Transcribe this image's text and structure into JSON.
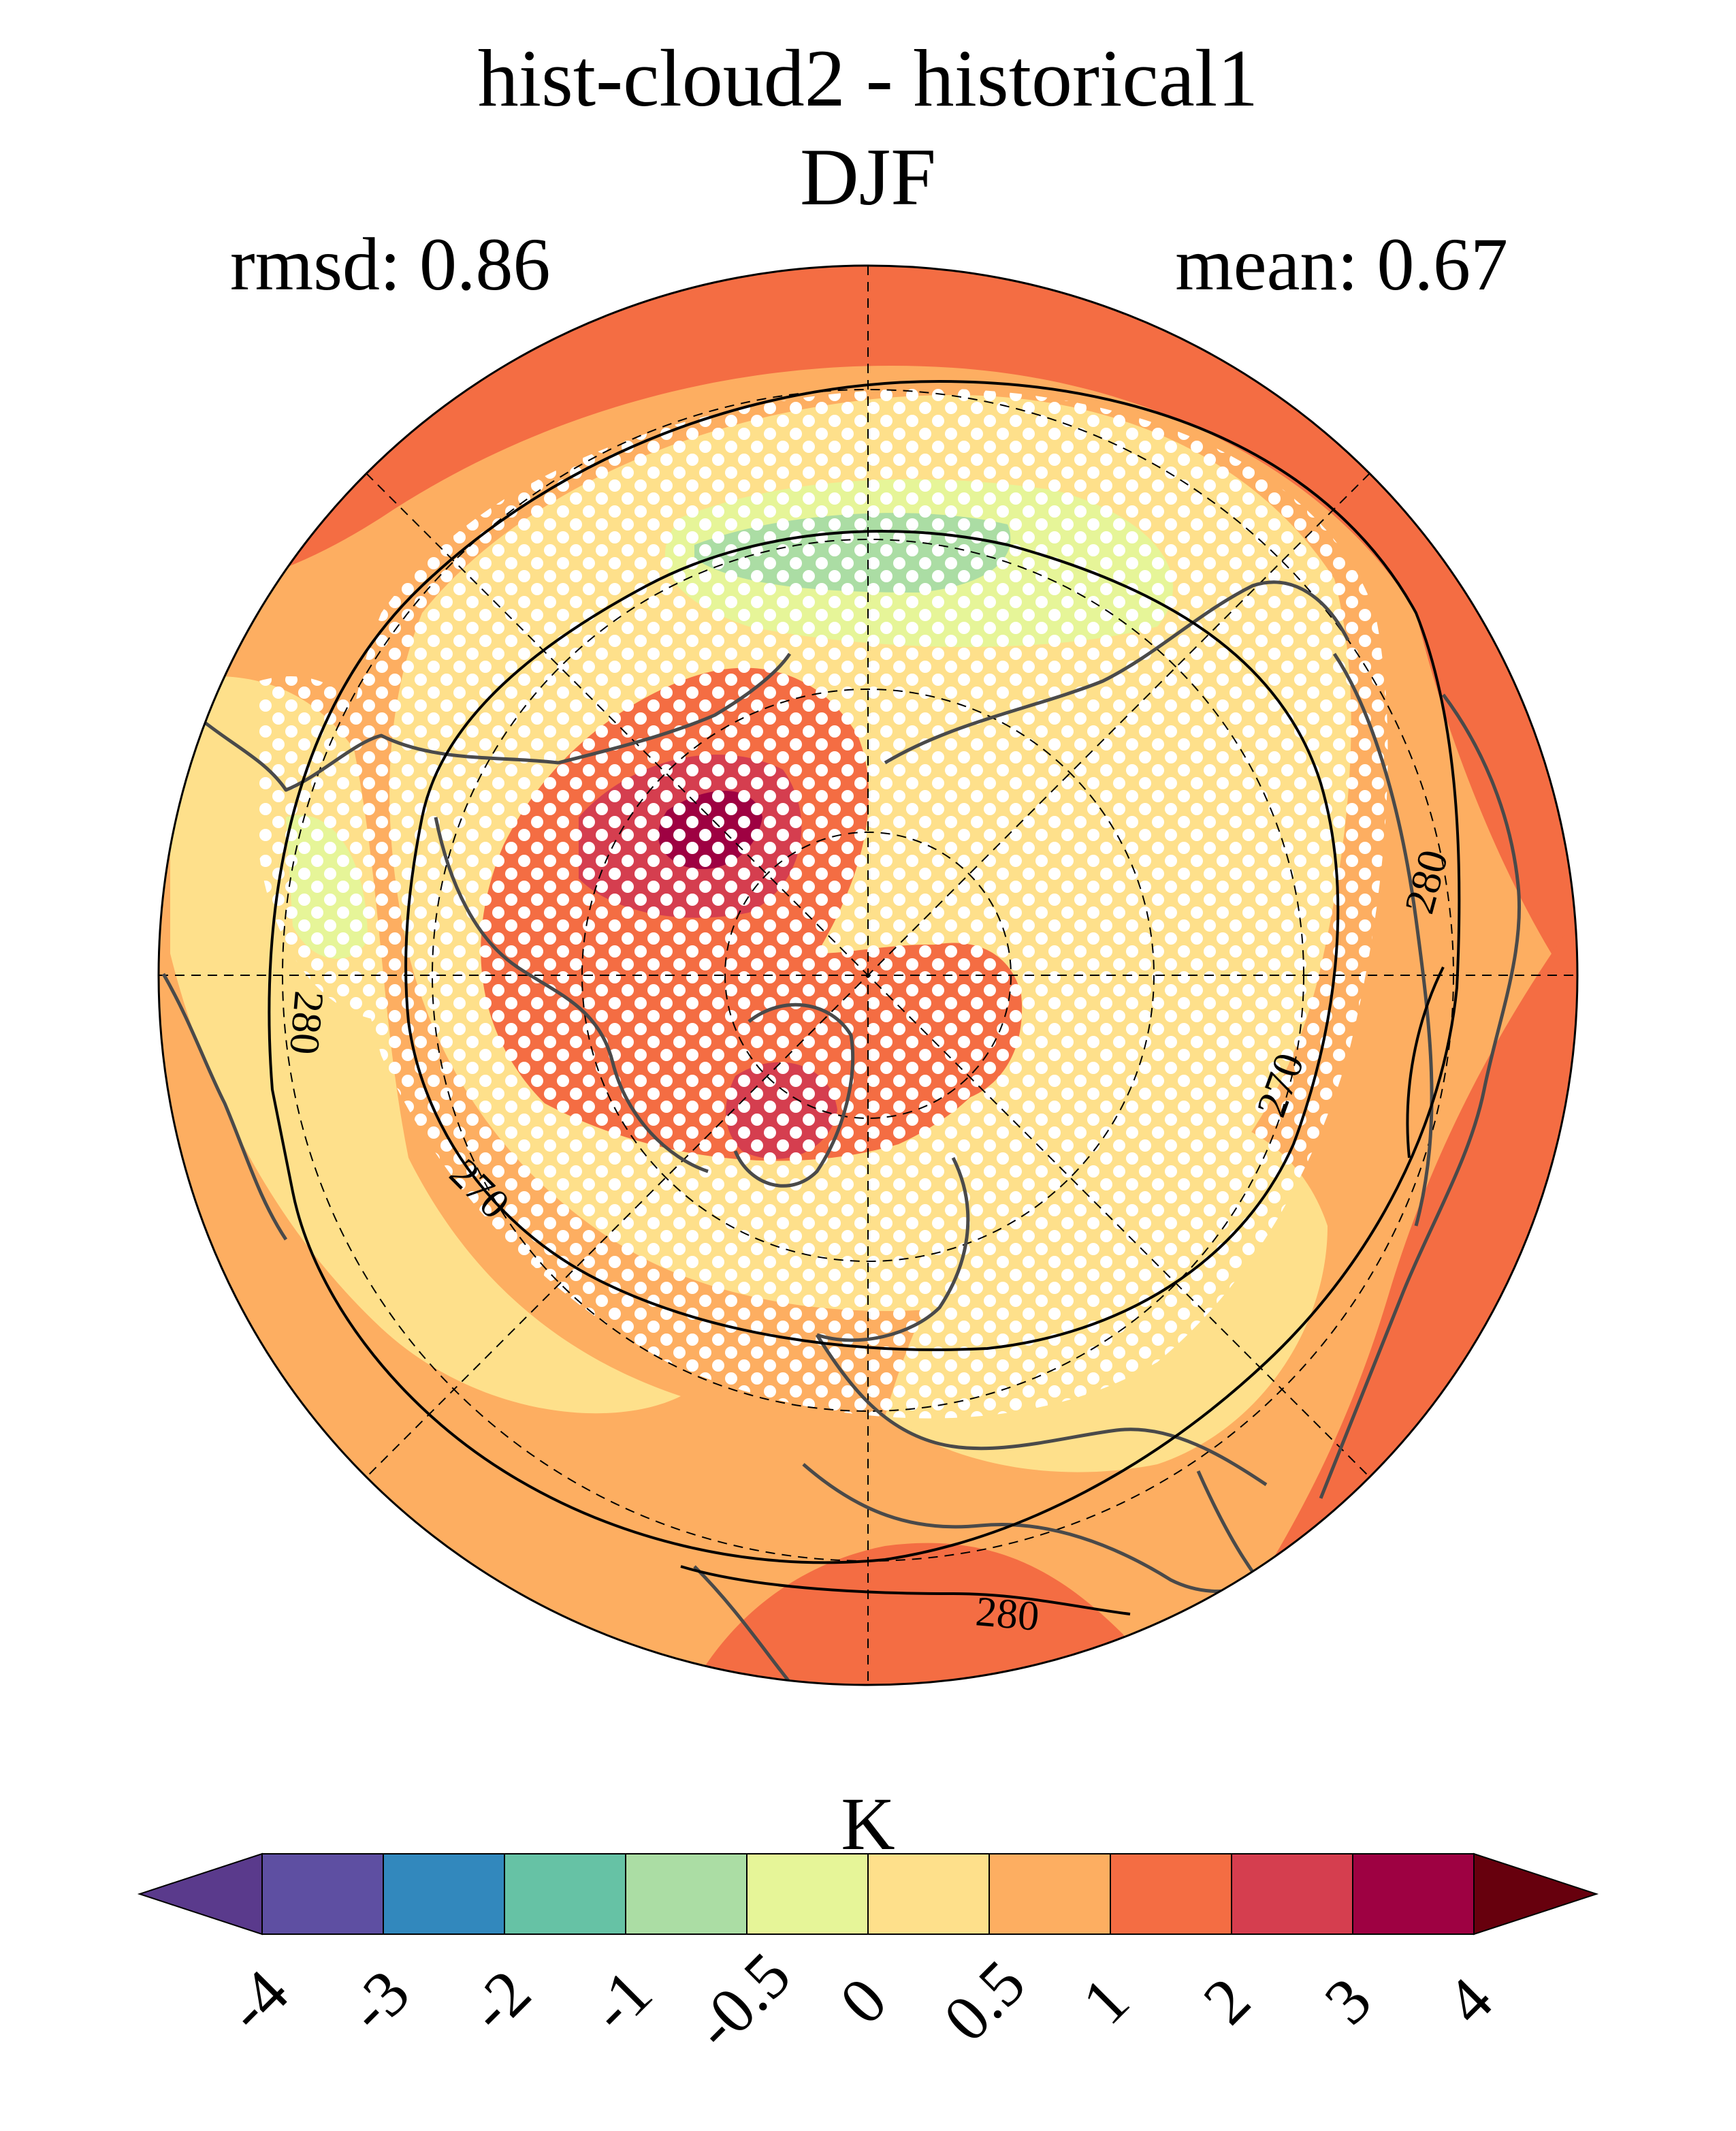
{
  "title": {
    "line1": "hist-cloud2 - historical1",
    "line2": "DJF"
  },
  "stats": {
    "rmsd": "rmsd: 0.86",
    "mean": "mean: 0.67"
  },
  "map": {
    "projection": "North Polar Stereographic",
    "contour_labels": [
      "280",
      "280",
      "270",
      "270",
      "280"
    ],
    "stippling": "significance dots (white)"
  },
  "colorbar": {
    "unit": "K",
    "tick_labels": [
      "-4",
      "-3",
      "-2",
      "-1",
      "-0.5",
      "0",
      "0.5",
      "1",
      "2",
      "3",
      "4"
    ],
    "colors": [
      "#5e4fa2",
      "#3288bd",
      "#66c2a5",
      "#abdda4",
      "#e6f598",
      "#fee08b",
      "#fdae61",
      "#f46d43",
      "#d53e4f",
      "#9e0142"
    ],
    "under_color": "#5a3a8c",
    "over_color": "#67000d",
    "extend": "both"
  }
}
